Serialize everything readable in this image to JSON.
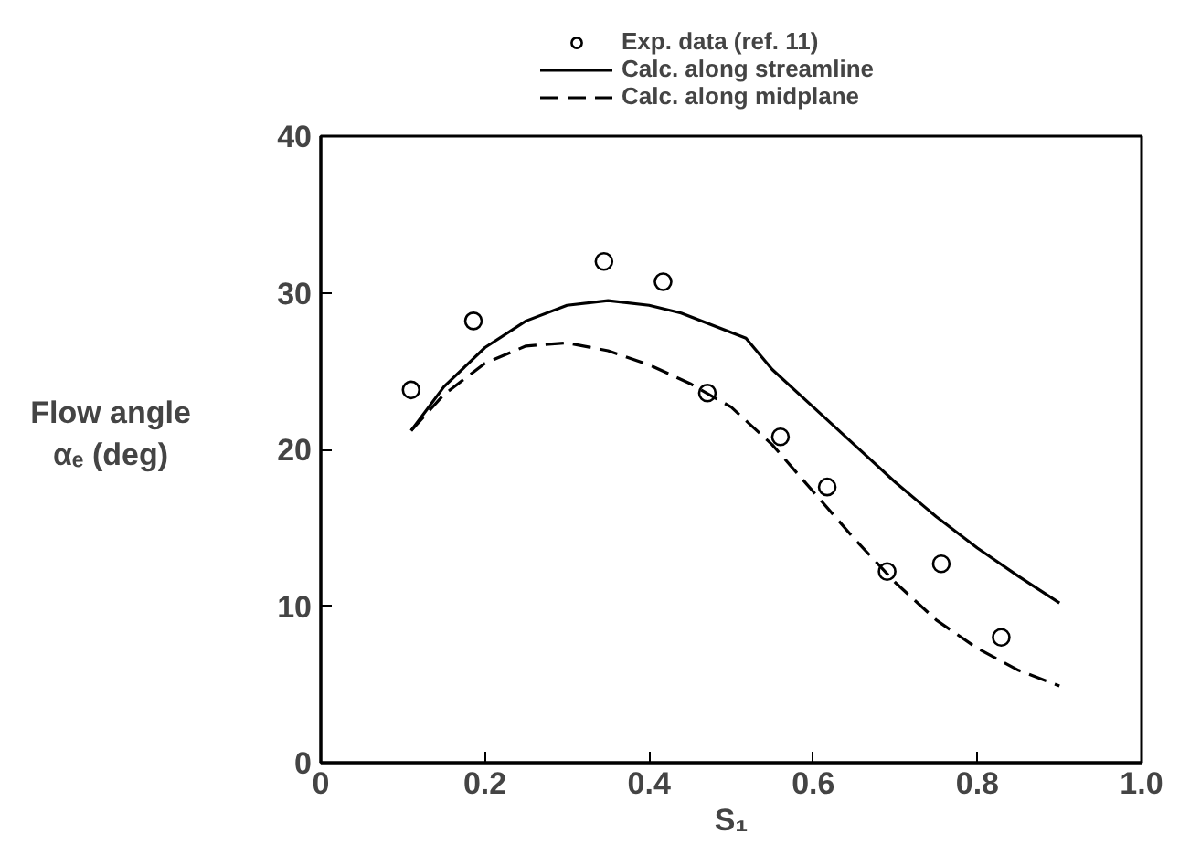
{
  "chart_data": {
    "type": "line",
    "xlabel": "S₁",
    "ylabel": "Flow angle\nαₑ (deg)",
    "xlim": [
      0,
      1.0
    ],
    "ylim": [
      0,
      40
    ],
    "xticks": [
      0,
      0.2,
      0.4,
      0.6,
      0.8,
      {
        "value": 1.0,
        "label": "1.0"
      }
    ],
    "yticks": [
      0,
      10,
      20,
      30,
      40
    ],
    "grid": false,
    "legend": "top",
    "series": [
      {
        "name": "Exp. data (ref. 11)",
        "type": "scatter",
        "marker": "circle",
        "color": "#000000",
        "x": [
          0.11,
          0.186,
          0.345,
          0.417,
          0.471,
          0.56,
          0.617,
          0.69,
          0.756,
          0.829
        ],
        "values": [
          23.8,
          28.2,
          32.0,
          30.7,
          23.6,
          20.8,
          17.6,
          12.2,
          12.7,
          8.0
        ]
      },
      {
        "name": "Calc. along streamline",
        "line_style": "solid",
        "color": "#000000",
        "x": [
          0.11,
          0.15,
          0.2,
          0.25,
          0.3,
          0.35,
          0.4,
          0.439,
          0.518,
          0.55,
          0.6,
          0.65,
          0.7,
          0.75,
          0.8,
          0.85,
          0.9
        ],
        "values": [
          21.2,
          24.0,
          26.5,
          28.2,
          29.2,
          29.5,
          29.2,
          28.7,
          27.1,
          25.1,
          22.7,
          20.3,
          17.9,
          15.7,
          13.7,
          11.9,
          10.2
        ]
      },
      {
        "name": "Calc. along midplane",
        "line_style": "dashed",
        "color": "#000000",
        "x": [
          0.11,
          0.15,
          0.2,
          0.25,
          0.3,
          0.35,
          0.4,
          0.45,
          0.5,
          0.55,
          0.6,
          0.65,
          0.7,
          0.75,
          0.8,
          0.85,
          0.9
        ],
        "values": [
          21.2,
          23.5,
          25.5,
          26.6,
          26.8,
          26.3,
          25.4,
          24.2,
          22.7,
          20.3,
          17.3,
          14.3,
          11.5,
          9.1,
          7.3,
          5.9,
          4.9
        ]
      }
    ]
  }
}
